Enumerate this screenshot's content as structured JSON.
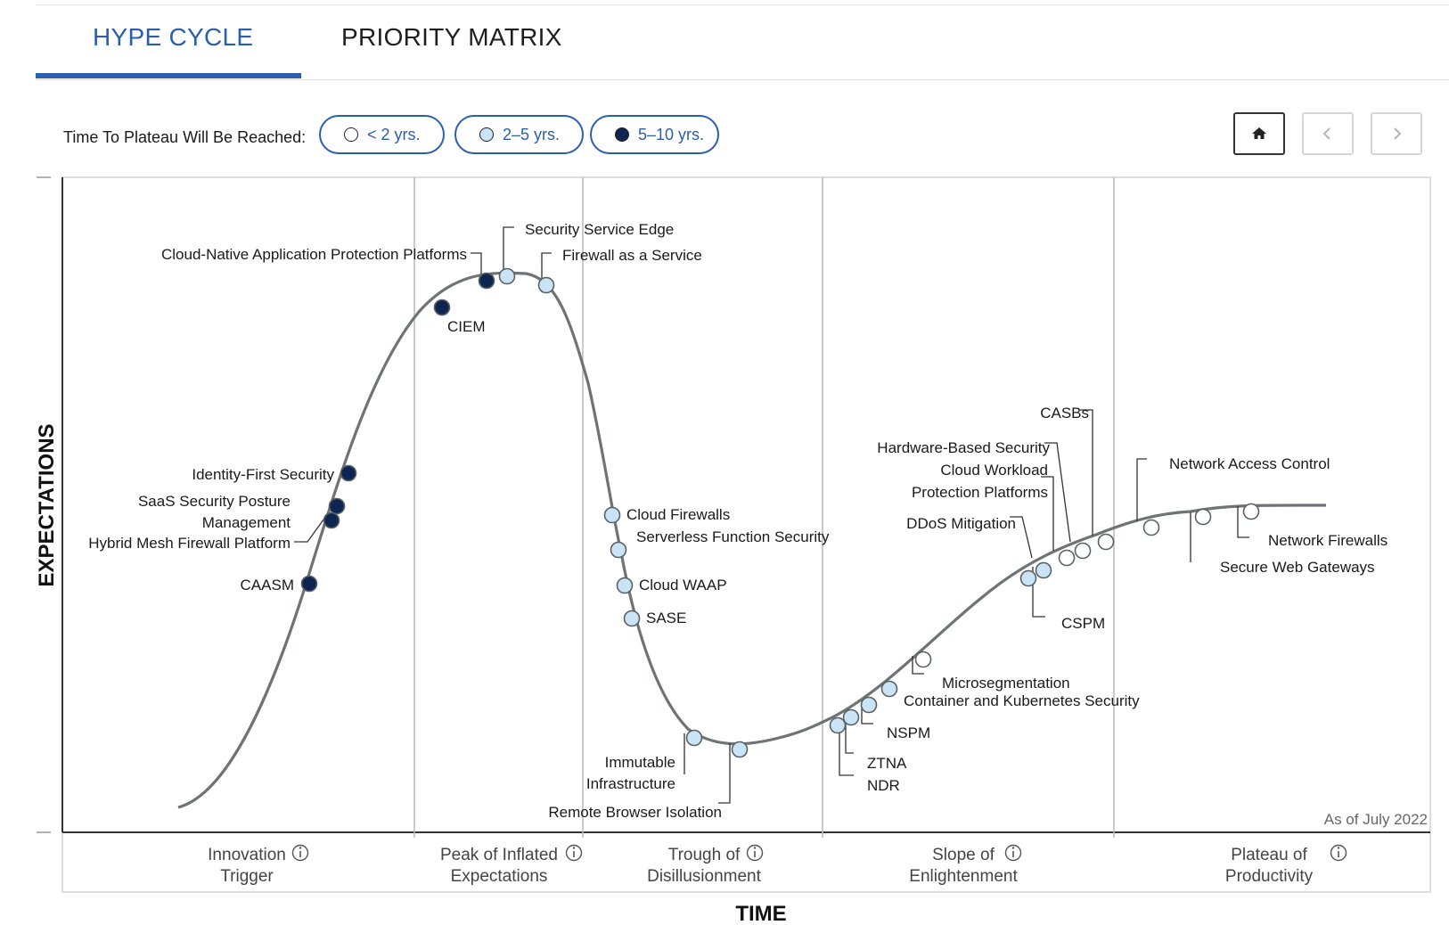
{
  "tabs": [
    {
      "label": "HYPE CYCLE",
      "active": true
    },
    {
      "label": "PRIORITY MATRIX",
      "active": false
    }
  ],
  "legend": {
    "label": "Time To Plateau Will Be Reached:",
    "items": [
      {
        "label": "< 2 yrs.",
        "color": "#ffffff"
      },
      {
        "label": "2–5 yrs.",
        "color": "#c9e4f6"
      },
      {
        "label": "5–10 yrs.",
        "color": "#0f2551"
      }
    ]
  },
  "nav": {
    "home_icon": "home-icon",
    "prev_icon": "chevron-left-icon",
    "next_icon": "chevron-right-icon"
  },
  "axes": {
    "y_title": "EXPECTATIONS",
    "x_title": "TIME"
  },
  "as_of": "As of July 2022",
  "phases": [
    {
      "line1": "Innovation",
      "line2": "Trigger"
    },
    {
      "line1": "Peak of Inflated",
      "line2": "Expectations"
    },
    {
      "line1": "Trough of",
      "line2": "Disillusionment"
    },
    {
      "line1": "Slope of",
      "line2": "Enlightenment"
    },
    {
      "line1": "Plateau of",
      "line2": "Productivity"
    }
  ],
  "colors": {
    "accent": "#2b5fad",
    "curve": "#6e7375",
    "dark_dot": "#0f2551",
    "light_dot": "#c9e4f6",
    "grid": "#b9b9b9"
  },
  "chart_data": {
    "type": "hype_cycle",
    "technologies": [
      {
        "name": "CAASM",
        "phase": "Innovation Trigger",
        "plateau": "5–10 yrs."
      },
      {
        "name": "Hybrid Mesh Firewall Platform",
        "phase": "Innovation Trigger",
        "plateau": "5–10 yrs."
      },
      {
        "name": "SaaS Security Posture Management",
        "phase": "Innovation Trigger",
        "plateau": "5–10 yrs."
      },
      {
        "name": "Identity-First Security",
        "phase": "Innovation Trigger",
        "plateau": "5–10 yrs."
      },
      {
        "name": "CIEM",
        "phase": "Peak of Inflated Expectations",
        "plateau": "5–10 yrs."
      },
      {
        "name": "Cloud-Native Application Protection Platforms",
        "phase": "Peak of Inflated Expectations",
        "plateau": "5–10 yrs."
      },
      {
        "name": "Security Service Edge",
        "phase": "Peak of Inflated Expectations",
        "plateau": "2–5 yrs."
      },
      {
        "name": "Firewall as a Service",
        "phase": "Peak of Inflated Expectations",
        "plateau": "2–5 yrs."
      },
      {
        "name": "Cloud Firewalls",
        "phase": "Trough of Disillusionment",
        "plateau": "2–5 yrs."
      },
      {
        "name": "Serverless Function Security",
        "phase": "Trough of Disillusionment",
        "plateau": "2–5 yrs."
      },
      {
        "name": "Cloud WAAP",
        "phase": "Trough of Disillusionment",
        "plateau": "2–5 yrs."
      },
      {
        "name": "SASE",
        "phase": "Trough of Disillusionment",
        "plateau": "2–5 yrs."
      },
      {
        "name": "Immutable Infrastructure",
        "phase": "Trough of Disillusionment",
        "plateau": "2–5 yrs."
      },
      {
        "name": "Remote Browser Isolation",
        "phase": "Trough of Disillusionment",
        "plateau": "2–5 yrs."
      },
      {
        "name": "NDR",
        "phase": "Slope of Enlightenment",
        "plateau": "2–5 yrs."
      },
      {
        "name": "ZTNA",
        "phase": "Slope of Enlightenment",
        "plateau": "2–5 yrs."
      },
      {
        "name": "NSPM",
        "phase": "Slope of Enlightenment",
        "plateau": "2–5 yrs."
      },
      {
        "name": "Container and Kubernetes Security",
        "phase": "Slope of Enlightenment",
        "plateau": "2–5 yrs."
      },
      {
        "name": "Microsegmentation",
        "phase": "Slope of Enlightenment",
        "plateau": "< 2 yrs."
      },
      {
        "name": "CSPM",
        "phase": "Slope of Enlightenment",
        "plateau": "2–5 yrs."
      },
      {
        "name": "DDoS Mitigation",
        "phase": "Slope of Enlightenment",
        "plateau": "2–5 yrs."
      },
      {
        "name": "Cloud Workload Protection Platforms",
        "phase": "Slope of Enlightenment",
        "plateau": "< 2 yrs."
      },
      {
        "name": "Hardware-Based Security",
        "phase": "Slope of Enlightenment",
        "plateau": "< 2 yrs."
      },
      {
        "name": "CASBs",
        "phase": "Slope of Enlightenment",
        "plateau": "< 2 yrs."
      },
      {
        "name": "Network Access Control",
        "phase": "Plateau of Productivity",
        "plateau": "< 2 yrs."
      },
      {
        "name": "Secure Web Gateways",
        "phase": "Plateau of Productivity",
        "plateau": "< 2 yrs."
      },
      {
        "name": "Network Firewalls",
        "phase": "Plateau of Productivity",
        "plateau": "< 2 yrs."
      }
    ]
  }
}
